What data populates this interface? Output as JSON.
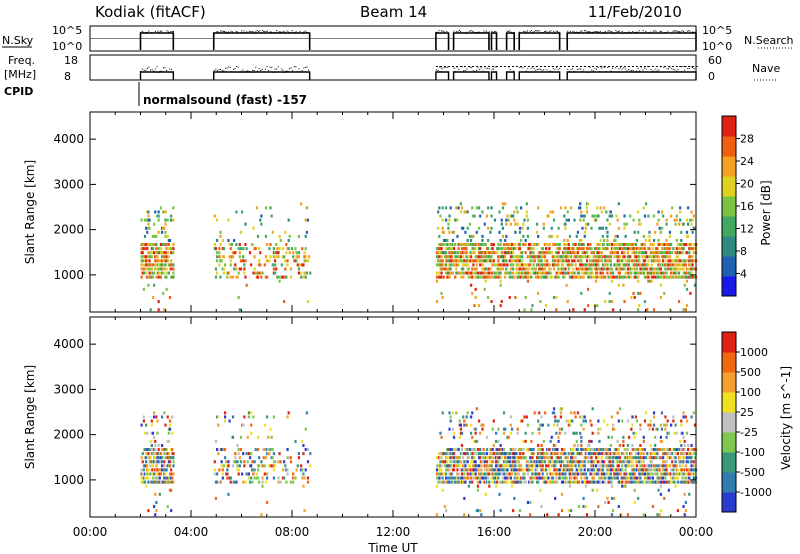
{
  "header": {
    "station": "Kodiak (fitACF)",
    "beam": "Beam 14",
    "date": "11/Feb/2010"
  },
  "strip1": {
    "left_label": "N.Sky",
    "left_ticks": [
      "10^5",
      "10^0"
    ],
    "right_ticks": [
      "10^5",
      "10^0"
    ],
    "right_label": "N.Search"
  },
  "strip2": {
    "left_label_1": "Freq.",
    "left_label_2": "[MHz]",
    "left_ticks": [
      "18",
      "8"
    ],
    "right_ticks": [
      "60",
      "0"
    ],
    "right_label": "Nave"
  },
  "cpid": {
    "label": "CPID",
    "annotation": "normalsound (fast) -157"
  },
  "chart_data": [
    {
      "type": "heatmap",
      "name": "Power",
      "ylabel": "Slant Range [km]",
      "ylim": [
        180,
        4600
      ],
      "yticks": [
        1000,
        2000,
        3000,
        4000
      ],
      "xlim_hours": [
        0,
        24
      ],
      "colorbar": {
        "label": "Power [dB]",
        "ticks": [
          "28",
          "24",
          "20",
          "16",
          "12",
          "8",
          "4"
        ],
        "range": [
          0,
          32
        ],
        "colors": [
          "#1a1ae6",
          "#2060b0",
          "#2c8a80",
          "#40a860",
          "#7ac442",
          "#e0d020",
          "#f4a020",
          "#f06010",
          "#e02010"
        ]
      },
      "data_windows_hours": [
        [
          2.0,
          3.3
        ],
        [
          4.9,
          8.7
        ],
        [
          13.7,
          24.0
        ]
      ]
    },
    {
      "type": "heatmap",
      "name": "Velocity",
      "ylabel": "Slant Range [km]",
      "ylim": [
        180,
        4600
      ],
      "yticks": [
        1000,
        2000,
        3000,
        4000
      ],
      "xlim_hours": [
        0,
        24
      ],
      "colorbar": {
        "label": "Velocity [m s^-1]",
        "ticks": [
          "1000",
          "500",
          "100",
          "25",
          "-25",
          "-100",
          "-500",
          "-1000"
        ],
        "range": [
          -1200,
          1200
        ],
        "colors": [
          "#2a3cd0",
          "#2e7cb0",
          "#3a9a78",
          "#7ec850",
          "#bfbfbf",
          "#f0e020",
          "#f5a030",
          "#f06810",
          "#e02010"
        ]
      },
      "data_windows_hours": [
        [
          2.0,
          3.3
        ],
        [
          4.9,
          8.7
        ],
        [
          13.7,
          24.0
        ]
      ]
    }
  ],
  "xaxis": {
    "label": "Time UT",
    "ticks": [
      "00:00",
      "04:00",
      "08:00",
      "12:00",
      "16:00",
      "20:00",
      "00:00"
    ]
  }
}
